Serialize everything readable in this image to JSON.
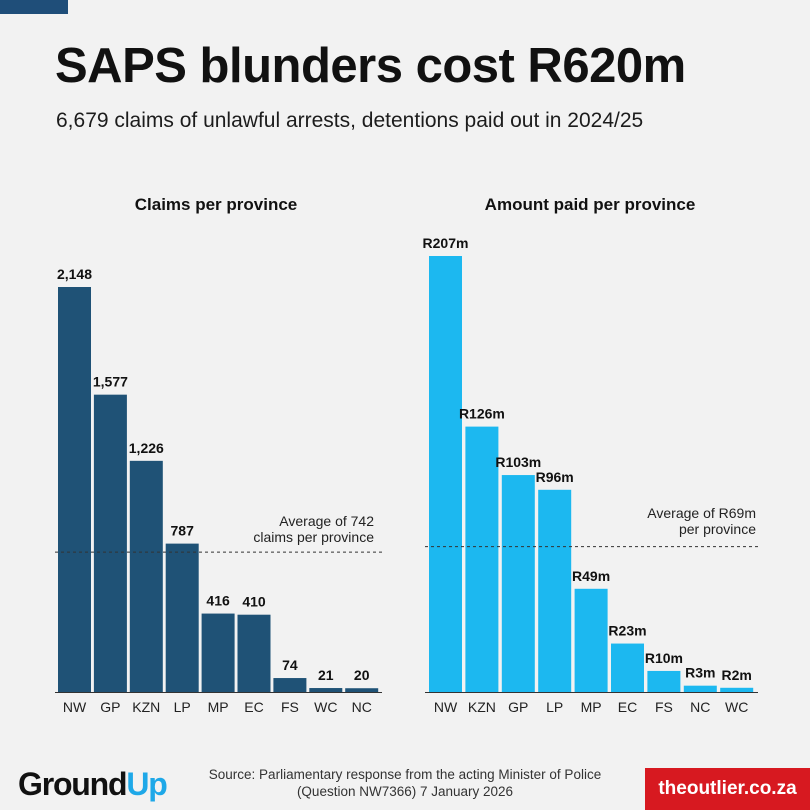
{
  "title": "SAPS blunders cost R620m",
  "subtitle": "6,679 claims of unlawful arrests, detentions paid out in 2024/25",
  "chart_data": [
    {
      "type": "bar",
      "title": "Claims per province",
      "categories": [
        "NW",
        "GP",
        "KZN",
        "LP",
        "MP",
        "EC",
        "FS",
        "WC",
        "NC"
      ],
      "values": [
        2148,
        1577,
        1226,
        787,
        416,
        410,
        74,
        21,
        20
      ],
      "labels": [
        "2,148",
        "1,577",
        "1,226",
        "787",
        "416",
        "410",
        "74",
        "21",
        "20"
      ],
      "ylim": [
        0,
        2148
      ],
      "reference_line": {
        "value": 742,
        "label_lines": [
          "Average of 742",
          "claims per province"
        ]
      },
      "color": "#1f5276"
    },
    {
      "type": "bar",
      "title": "Amount paid per province",
      "categories": [
        "NW",
        "KZN",
        "GP",
        "LP",
        "MP",
        "EC",
        "FS",
        "NC",
        "WC"
      ],
      "values": [
        207,
        126,
        103,
        96,
        49,
        23,
        10,
        3,
        2
      ],
      "labels": [
        "R207m",
        "R126m",
        "R103m",
        "R96m",
        "R49m",
        "R23m",
        "R10m",
        "R3m",
        "R2m"
      ],
      "ylim": [
        0,
        207
      ],
      "reference_line": {
        "value": 69,
        "label_lines": [
          "Average of R69m",
          "per province"
        ]
      },
      "color": "#1cb8f0"
    }
  ],
  "footer": {
    "logo_part1": "Ground",
    "logo_part2": "Up",
    "source_line1": "Source: Parliamentary response from the acting Minister of Police",
    "source_line2": "(Question NW7366) 7 January 2026",
    "publisher": "theoutlier.co.za"
  }
}
